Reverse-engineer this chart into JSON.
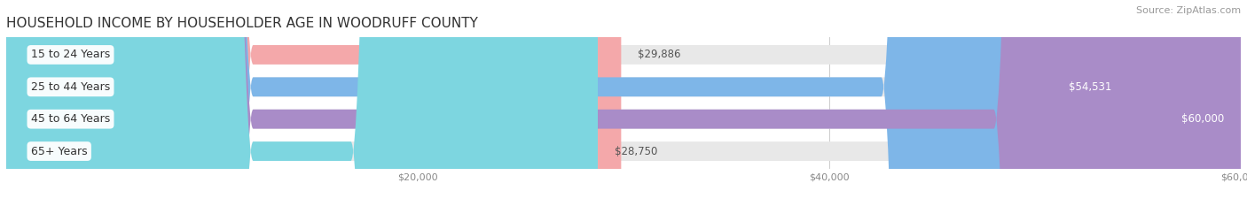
{
  "title": "HOUSEHOLD INCOME BY HOUSEHOLDER AGE IN WOODRUFF COUNTY",
  "source": "Source: ZipAtlas.com",
  "categories": [
    "15 to 24 Years",
    "25 to 44 Years",
    "45 to 64 Years",
    "65+ Years"
  ],
  "values": [
    29886,
    54531,
    60000,
    28750
  ],
  "bar_colors": [
    "#f4a8aa",
    "#7eb6e8",
    "#a98cc8",
    "#7dd6e0"
  ],
  "bar_bg_color": "#e8e8e8",
  "xmin": 0,
  "xmax": 60000,
  "xticks": [
    20000,
    40000,
    60000
  ],
  "xtick_labels": [
    "$20,000",
    "$40,000",
    "$60,000"
  ],
  "bar_height": 0.6,
  "figsize": [
    14.06,
    2.33
  ],
  "title_fontsize": 11,
  "label_fontsize": 9,
  "value_fontsize": 8.5,
  "tick_fontsize": 8,
  "source_fontsize": 8
}
